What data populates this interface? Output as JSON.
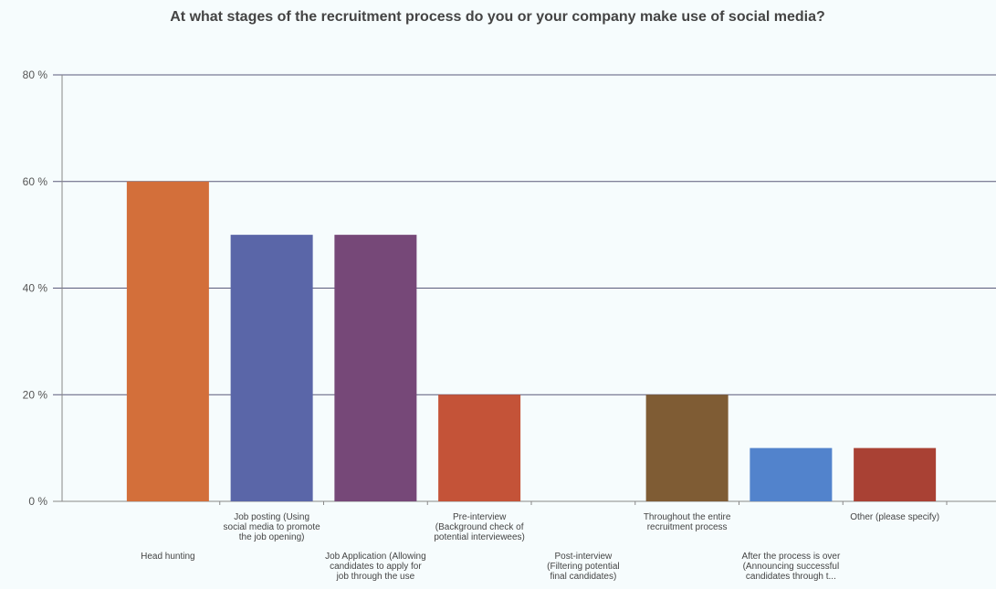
{
  "chart_data": {
    "type": "bar",
    "title": "At what stages of the recruitment process do you or your company make use of social media?",
    "xlabel": "",
    "ylabel": "",
    "ylim": [
      0,
      80
    ],
    "yticks": [
      "0 %",
      "20 %",
      "40 %",
      "60 %",
      "80 %"
    ],
    "grid": true,
    "categories": [
      "Head hunting",
      "Job posting (Using social media to promote the job opening)",
      "Job Application (Allowing candidates to apply for job through the use",
      "Pre-interview (Background check of potential interviewees)",
      "Post-interview (Filtering potential final candidates)",
      "Throughout the entire recruitment process",
      "After the process is over (Announcing successful candidates through t...",
      "Other (please specify)"
    ],
    "values": [
      60,
      50,
      50,
      20,
      0,
      20,
      10,
      10
    ],
    "colors": [
      "#d36f3a",
      "#5a66a8",
      "#764878",
      "#c45338",
      "#c45338",
      "#7f5c34",
      "#5283cc",
      "#a94134"
    ]
  }
}
